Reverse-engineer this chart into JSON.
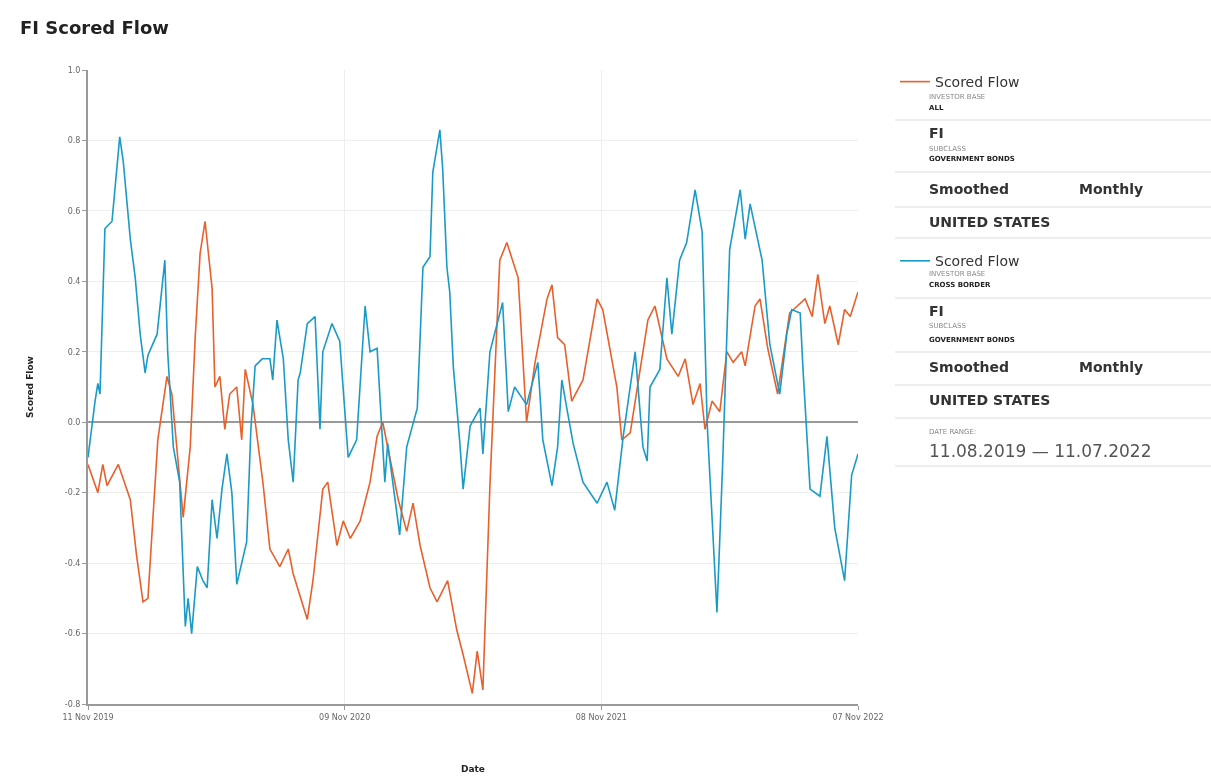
{
  "chart_data": [
    {
      "type": "line",
      "title": "FI Scored Flow",
      "xlabel": "Date",
      "ylabel": "Scored Flow",
      "xlim": [
        "2019-11-11",
        "2022-11-07"
      ],
      "xticks": [
        {
          "value": "2019-11-11",
          "label": "11 Nov 2019"
        },
        {
          "value": "2020-11-09",
          "label": "09 Nov 2020"
        },
        {
          "value": "2021-11-08",
          "label": "08 Nov 2021"
        },
        {
          "value": "2022-11-07",
          "label": "07 Nov 2022"
        }
      ],
      "ylim": [
        -0.8,
        1.0
      ],
      "yticks": [
        -0.8,
        -0.6,
        -0.4,
        -0.2,
        {
          "value": 0,
          "label": "0.0"
        },
        0.2,
        0.4,
        0.6,
        0.8,
        {
          "value": 1,
          "label": "1.0"
        }
      ],
      "grid": true,
      "legend": "right",
      "marker": "none",
      "line_style": "solid",
      "series": [
        {
          "name": "Scored Flow",
          "color": "#e8602c",
          "x": [
            "2019-11-11",
            "2019-11-25",
            "2019-12-02",
            "2019-12-08",
            "2019-12-24",
            "2020-01-10",
            "2020-01-19",
            "2020-01-28",
            "2020-02-04",
            "2020-02-18",
            "2020-03-02",
            "2020-03-09",
            "2020-03-25",
            "2020-04-04",
            "2020-04-11",
            "2020-04-18",
            "2020-04-25",
            "2020-05-05",
            "2020-05-09",
            "2020-05-16",
            "2020-05-23",
            "2020-05-30",
            "2020-06-09",
            "2020-06-16",
            "2020-06-21",
            "2020-07-02",
            "2020-07-16",
            "2020-07-26",
            "2020-08-09",
            "2020-08-21",
            "2020-08-28",
            "2020-09-17",
            "2020-09-25",
            "2020-10-09",
            "2020-10-16",
            "2020-10-29",
            "2020-11-07",
            "2020-11-17",
            "2020-12-01",
            "2020-12-15",
            "2020-12-25",
            "2021-01-02",
            "2021-01-24",
            "2021-02-05",
            "2021-02-14",
            "2021-02-24",
            "2021-03-10",
            "2021-03-20",
            "2021-04-04",
            "2021-04-17",
            "2021-04-26",
            "2021-05-09",
            "2021-05-16",
            "2021-05-24",
            "2021-06-03",
            "2021-06-17",
            "2021-06-27",
            "2021-07-13",
            "2021-07-25",
            "2021-08-06",
            "2021-08-23",
            "2021-08-30",
            "2021-09-07",
            "2021-09-17",
            "2021-09-27",
            "2021-10-13",
            "2021-11-02",
            "2021-11-10",
            "2021-11-30",
            "2021-12-07",
            "2021-12-19",
            "2022-01-06",
            "2022-01-13",
            "2022-01-23",
            "2022-02-09",
            "2022-02-25",
            "2022-03-07",
            "2022-03-18",
            "2022-03-28",
            "2022-04-04",
            "2022-04-14",
            "2022-04-25",
            "2022-05-05",
            "2022-05-14",
            "2022-05-26",
            "2022-05-31",
            "2022-06-14",
            "2022-06-21",
            "2022-07-02",
            "2022-07-16",
            "2022-08-02",
            "2022-08-24",
            "2022-09-03",
            "2022-09-11",
            "2022-09-21",
            "2022-09-28",
            "2022-10-10",
            "2022-10-19",
            "2022-10-27",
            "2022-11-07"
          ],
          "values": [
            -0.12,
            -0.2,
            -0.12,
            -0.18,
            -0.12,
            -0.22,
            -0.38,
            -0.51,
            -0.5,
            -0.05,
            0.13,
            0.08,
            -0.27,
            -0.07,
            0.24,
            0.48,
            0.57,
            0.38,
            0.1,
            0.13,
            -0.02,
            0.08,
            0.1,
            -0.05,
            0.15,
            0.05,
            -0.17,
            -0.36,
            -0.41,
            -0.36,
            -0.43,
            -0.56,
            -0.45,
            -0.19,
            -0.17,
            -0.35,
            -0.28,
            -0.33,
            -0.28,
            -0.17,
            -0.04,
            0.0,
            -0.22,
            -0.31,
            -0.23,
            -0.35,
            -0.47,
            -0.51,
            -0.45,
            -0.59,
            -0.66,
            -0.77,
            -0.65,
            -0.76,
            -0.18,
            0.46,
            0.51,
            0.41,
            0.0,
            0.17,
            0.35,
            0.39,
            0.24,
            0.22,
            0.06,
            0.12,
            0.35,
            0.32,
            0.1,
            -0.05,
            -0.03,
            0.2,
            0.29,
            0.33,
            0.18,
            0.13,
            0.18,
            0.05,
            0.11,
            -0.02,
            0.06,
            0.03,
            0.2,
            0.17,
            0.2,
            0.16,
            0.33,
            0.35,
            0.21,
            0.08,
            0.31,
            0.35,
            0.3,
            0.42,
            0.28,
            0.33,
            0.22,
            0.32,
            0.3,
            0.37
          ]
        },
        {
          "name": "Scored Flow",
          "color": "#1a9bc7",
          "x": [
            "2019-11-11",
            "2019-11-21",
            "2019-11-25",
            "2019-11-28",
            "2019-12-05",
            "2019-12-15",
            "2019-12-26",
            "2019-12-31",
            "2020-01-10",
            "2020-01-17",
            "2020-01-24",
            "2020-01-31",
            "2020-02-04",
            "2020-02-17",
            "2020-02-28",
            "2020-03-03",
            "2020-03-11",
            "2020-03-20",
            "2020-03-28",
            "2020-04-01",
            "2020-04-06",
            "2020-04-14",
            "2020-04-22",
            "2020-04-28",
            "2020-05-05",
            "2020-05-12",
            "2020-05-19",
            "2020-05-26",
            "2020-06-02",
            "2020-06-09",
            "2020-06-23",
            "2020-06-29",
            "2020-07-05",
            "2020-07-15",
            "2020-07-26",
            "2020-07-30",
            "2020-08-05",
            "2020-08-14",
            "2020-08-21",
            "2020-08-28",
            "2020-09-04",
            "2020-09-07",
            "2020-09-17",
            "2020-09-28",
            "2020-10-05",
            "2020-10-09",
            "2020-10-22",
            "2020-11-02",
            "2020-11-14",
            "2020-11-26",
            "2020-12-08",
            "2020-12-15",
            "2020-12-25",
            "2021-01-05",
            "2021-01-09",
            "2021-01-26",
            "2021-02-05",
            "2021-02-20",
            "2021-02-28",
            "2021-03-10",
            "2021-03-14",
            "2021-03-24",
            "2021-03-28",
            "2021-04-03",
            "2021-04-07",
            "2021-04-12",
            "2021-04-21",
            "2021-04-26",
            "2021-05-06",
            "2021-05-20",
            "2021-05-24",
            "2021-06-03",
            "2021-06-21",
            "2021-06-29",
            "2021-07-08",
            "2021-07-25",
            "2021-08-10",
            "2021-08-17",
            "2021-08-30",
            "2021-09-07",
            "2021-09-13",
            "2021-09-20",
            "2021-09-29",
            "2021-10-13",
            "2021-11-02",
            "2021-11-16",
            "2021-11-27",
            "2021-12-09",
            "2021-12-26",
            "2022-01-06",
            "2022-01-12",
            "2022-01-16",
            "2022-01-30",
            "2022-02-09",
            "2022-02-16",
            "2022-02-27",
            "2022-03-09",
            "2022-03-21",
            "2022-03-31",
            "2022-04-07",
            "2022-04-21",
            "2022-04-29",
            "2022-05-09",
            "2022-05-24",
            "2022-05-31",
            "2022-06-07",
            "2022-06-24",
            "2022-07-05",
            "2022-07-19",
            "2022-07-29",
            "2022-08-05",
            "2022-08-17",
            "2022-08-21",
            "2022-08-31",
            "2022-09-14",
            "2022-09-24",
            "2022-10-05",
            "2022-10-19",
            "2022-10-29",
            "2022-11-07"
          ],
          "values": [
            -0.1,
            0.06,
            0.11,
            0.08,
            0.55,
            0.57,
            0.81,
            0.74,
            0.52,
            0.41,
            0.25,
            0.14,
            0.19,
            0.25,
            0.46,
            0.2,
            -0.07,
            -0.17,
            -0.58,
            -0.5,
            -0.6,
            -0.41,
            -0.45,
            -0.47,
            -0.22,
            -0.33,
            -0.19,
            -0.09,
            -0.2,
            -0.46,
            -0.34,
            -0.02,
            0.16,
            0.18,
            0.18,
            0.12,
            0.29,
            0.18,
            -0.05,
            -0.17,
            0.12,
            0.14,
            0.28,
            0.3,
            -0.02,
            0.2,
            0.28,
            0.23,
            -0.1,
            -0.05,
            0.33,
            0.2,
            0.21,
            -0.17,
            -0.06,
            -0.32,
            -0.07,
            0.04,
            0.44,
            0.47,
            0.71,
            0.83,
            0.72,
            0.44,
            0.37,
            0.16,
            -0.05,
            -0.19,
            -0.01,
            0.04,
            -0.09,
            0.2,
            0.34,
            0.03,
            0.1,
            0.05,
            0.17,
            -0.05,
            -0.18,
            -0.07,
            0.12,
            0.04,
            -0.06,
            -0.17,
            -0.23,
            -0.17,
            -0.25,
            -0.04,
            0.2,
            -0.07,
            -0.11,
            0.1,
            0.15,
            0.41,
            0.25,
            0.46,
            0.51,
            0.66,
            0.54,
            0.0,
            -0.54,
            -0.12,
            0.49,
            0.66,
            0.52,
            0.62,
            0.46,
            0.22,
            0.08,
            0.25,
            0.32,
            0.31,
            0.15,
            -0.19,
            -0.21,
            -0.04,
            -0.3,
            -0.45,
            -0.15,
            -0.09
          ]
        }
      ]
    },
    {
      "type": "other",
      "annotations": [
        "INVESTOR BASE",
        "ALL",
        "FI",
        "SUBCLASS",
        "GOVERNMENT BONDS",
        "Smoothed",
        "Monthly",
        "UNITED STATES",
        "INVESTOR BASE",
        "CROSS BORDER",
        "FI",
        "SUBCLASS",
        "GOVERNMENT BONDS",
        "Smoothed",
        "Monthly",
        "UNITED STATES",
        "DATE RANGE:",
        "11.08.2019 — 11.07.2022"
      ]
    }
  ]
}
